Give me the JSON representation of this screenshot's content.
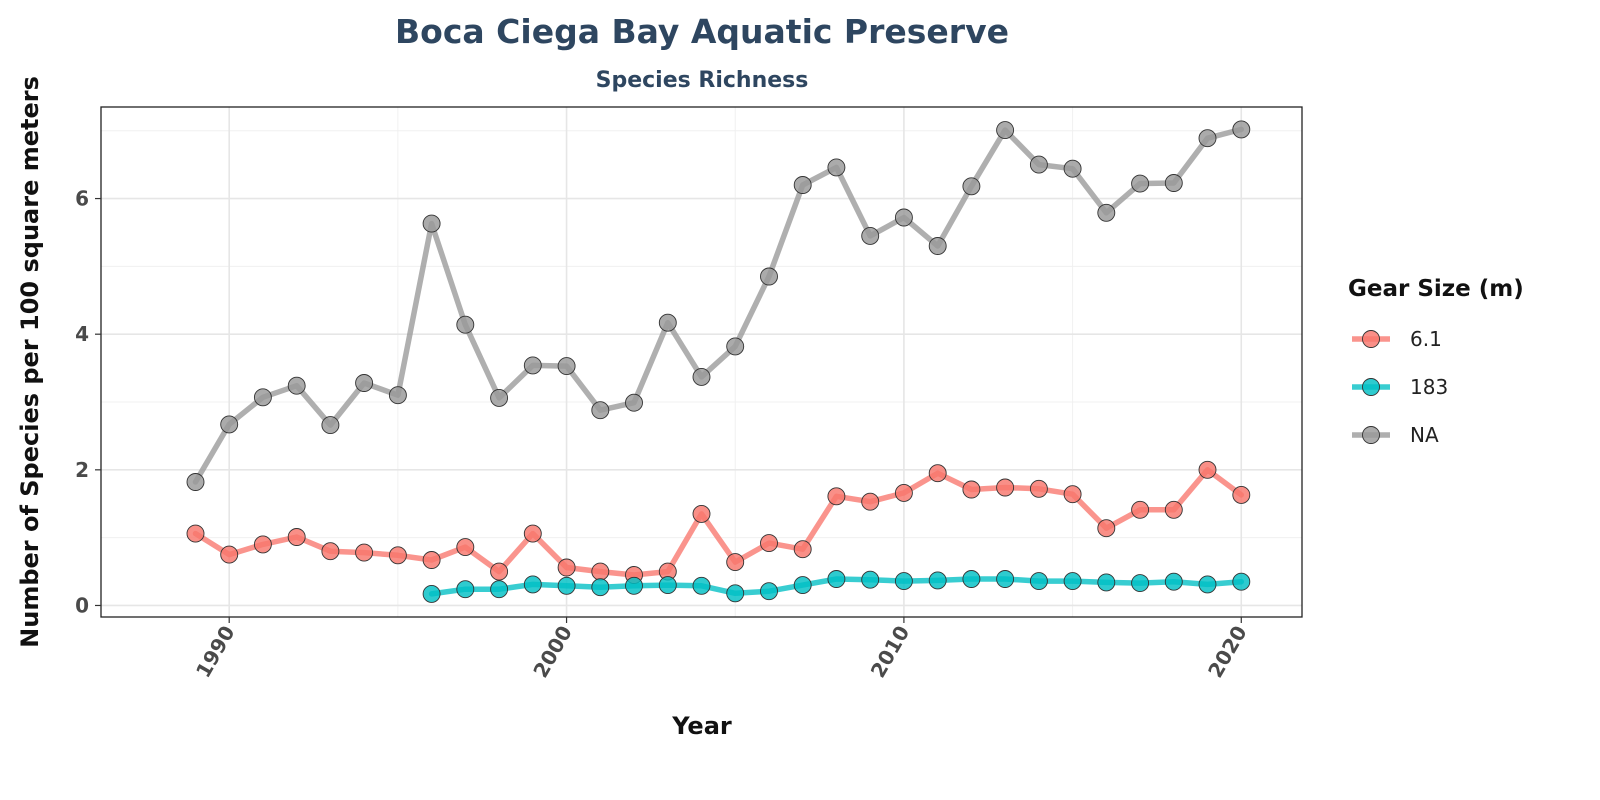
{
  "chart_data": {
    "type": "line",
    "title": "Boca Ciega Bay Aquatic Preserve",
    "subtitle": "Species Richness",
    "xlabel": "Year",
    "ylabel": "Number of Species per 100 square meters",
    "xlim": [
      1986.2,
      2021.8
    ],
    "ylim": [
      -0.17,
      7.35
    ],
    "x_ticks": [
      1990,
      2000,
      2010,
      2020
    ],
    "y_ticks": [
      0,
      2,
      4,
      6
    ],
    "grid": true,
    "legend_title": "Gear Size (m)",
    "legend_position": "right",
    "series": [
      {
        "name": "6.1",
        "color": "#F8766D",
        "x": [
          1989,
          1990,
          1991,
          1992,
          1993,
          1994,
          1995,
          1996,
          1997,
          1998,
          1999,
          2000,
          2001,
          2002,
          2003,
          2004,
          2005,
          2006,
          2007,
          2008,
          2009,
          2010,
          2011,
          2012,
          2013,
          2014,
          2015,
          2016,
          2017,
          2018,
          2019,
          2020
        ],
        "y": [
          1.06,
          0.75,
          0.9,
          1.01,
          0.8,
          0.78,
          0.74,
          0.67,
          0.86,
          0.5,
          1.06,
          0.56,
          0.5,
          0.45,
          0.5,
          1.35,
          0.64,
          0.92,
          0.83,
          1.61,
          1.53,
          1.66,
          1.95,
          1.71,
          1.74,
          1.72,
          1.64,
          1.14,
          1.41,
          1.41,
          2.0,
          1.63
        ]
      },
      {
        "name": "183",
        "color": "#00BFC4",
        "x": [
          1996,
          1997,
          1998,
          1999,
          2000,
          2001,
          2002,
          2003,
          2004,
          2005,
          2006,
          2007,
          2008,
          2009,
          2010,
          2011,
          2012,
          2013,
          2014,
          2015,
          2016,
          2017,
          2018,
          2019,
          2020
        ],
        "y": [
          0.17,
          0.24,
          0.24,
          0.31,
          0.29,
          0.27,
          0.29,
          0.3,
          0.29,
          0.18,
          0.21,
          0.3,
          0.39,
          0.38,
          0.36,
          0.37,
          0.39,
          0.39,
          0.36,
          0.36,
          0.34,
          0.33,
          0.35,
          0.31,
          0.35
        ]
      },
      {
        "name": "NA",
        "color": "#999999",
        "x": [
          1989,
          1990,
          1991,
          1992,
          1993,
          1994,
          1995,
          1996,
          1997,
          1998,
          1999,
          2000,
          2001,
          2002,
          2003,
          2004,
          2005,
          2006,
          2007,
          2008,
          2009,
          2010,
          2011,
          2012,
          2013,
          2014,
          2015,
          2016,
          2017,
          2018,
          2019,
          2020
        ],
        "y": [
          1.82,
          2.67,
          3.07,
          3.24,
          2.66,
          3.28,
          3.1,
          5.63,
          4.14,
          3.06,
          3.54,
          3.53,
          2.88,
          2.99,
          4.17,
          3.37,
          3.82,
          4.85,
          6.2,
          6.46,
          5.45,
          5.72,
          5.3,
          6.18,
          7.01,
          6.5,
          6.44,
          5.79,
          6.22,
          6.23,
          6.89,
          7.02
        ]
      }
    ]
  }
}
